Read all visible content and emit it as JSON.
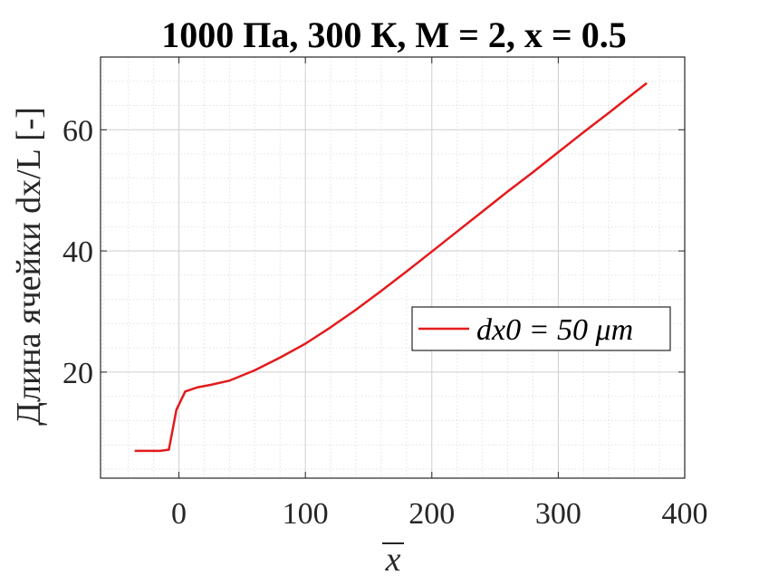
{
  "chart_data": {
    "type": "line",
    "title": "1000 Па, 300 К, M = 2, x = 0.5",
    "xlabel": "x",
    "ylabel": "Длина ячейки dx/L [-]",
    "xlim": [
      -62,
      400
    ],
    "ylim": [
      2.5,
      72
    ],
    "xticks": [
      0,
      100,
      200,
      300,
      400
    ],
    "xtick_labels": [
      "0",
      "100",
      "200",
      "300",
      "400"
    ],
    "yticks": [
      20,
      40,
      60
    ],
    "ytick_labels": [
      "20",
      "40",
      "60"
    ],
    "x_minor_step": 20,
    "y_minor_step": 4,
    "grid": true,
    "legend_position": "right",
    "series": [
      {
        "name": "dx0 = 50 μm",
        "color": "#e31a1c",
        "x": [
          -35,
          -15,
          -8,
          -2,
          5,
          15,
          25,
          40,
          60,
          80,
          100,
          120,
          140,
          160,
          180,
          200,
          220,
          240,
          260,
          280,
          300,
          320,
          340,
          360,
          370
        ],
        "y": [
          7.0,
          7.0,
          7.2,
          13.8,
          16.8,
          17.5,
          17.9,
          18.6,
          20.3,
          22.4,
          24.7,
          27.4,
          30.3,
          33.4,
          36.6,
          39.9,
          43.2,
          46.5,
          49.8,
          53.0,
          56.3,
          59.6,
          62.8,
          66.1,
          67.7
        ]
      }
    ]
  }
}
